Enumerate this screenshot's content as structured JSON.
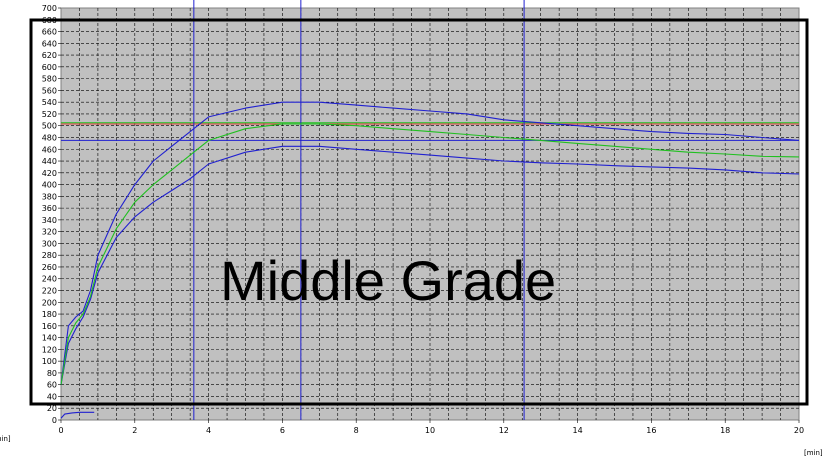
{
  "chart_data": {
    "type": "line",
    "xlabel_unit": "[min]",
    "ylabel_unit": "[min]",
    "xlim": [
      0,
      20
    ],
    "ylim": [
      0,
      700
    ],
    "x_ticks": [
      "0",
      "2",
      "4",
      "6",
      "8",
      "10",
      "12",
      "14",
      "16",
      "18",
      "20"
    ],
    "y_ticks": [
      "0",
      "20",
      "40",
      "60",
      "80",
      "100",
      "120",
      "140",
      "160",
      "180",
      "200",
      "220",
      "240",
      "260",
      "280",
      "300",
      "320",
      "340",
      "360",
      "380",
      "400",
      "420",
      "440",
      "460",
      "480",
      "500",
      "520",
      "540",
      "560",
      "580",
      "600",
      "620",
      "640",
      "660",
      "680",
      "700"
    ],
    "grid": true,
    "plot_background": "#c0c0c0",
    "overlay_text": "Middle Grade",
    "series": [
      {
        "color": "#2020d0",
        "x": [
          0,
          0.2,
          0.4,
          0.6,
          0.8,
          1,
          1.5,
          2,
          2.5,
          3,
          3.5,
          4,
          5,
          6,
          7,
          8,
          9,
          10,
          11,
          12,
          13,
          14,
          15,
          16,
          17,
          18,
          19,
          20
        ],
        "y": [
          60,
          160,
          175,
          185,
          220,
          280,
          350,
          400,
          440,
          465,
          490,
          515,
          530,
          540,
          540,
          535,
          530,
          525,
          520,
          510,
          505,
          500,
          495,
          490,
          487,
          485,
          480,
          475
        ]
      },
      {
        "color": "#2020d0",
        "x": [
          0,
          0.2,
          0.4,
          0.6,
          0.8,
          1,
          1.5,
          2,
          2.5,
          3,
          3.5,
          4,
          5,
          6,
          7,
          8,
          9,
          10,
          11,
          12,
          13,
          14,
          15,
          16,
          17,
          18,
          19,
          20
        ],
        "y": [
          60,
          130,
          155,
          175,
          205,
          250,
          310,
          345,
          370,
          390,
          410,
          435,
          455,
          465,
          465,
          460,
          455,
          450,
          445,
          440,
          437,
          435,
          432,
          430,
          428,
          425,
          420,
          418
        ]
      },
      {
        "color": "#20c020",
        "x": [
          0,
          0.2,
          0.4,
          0.6,
          0.8,
          1,
          1.5,
          2,
          2.5,
          3,
          3.5,
          4,
          5,
          6,
          7,
          8,
          9,
          10,
          11,
          12,
          13,
          14,
          15,
          16,
          17,
          18,
          19,
          20
        ],
        "y": [
          60,
          140,
          165,
          180,
          210,
          260,
          325,
          370,
          400,
          425,
          450,
          475,
          495,
          503,
          503,
          500,
          495,
          490,
          485,
          480,
          475,
          470,
          465,
          460,
          455,
          452,
          448,
          447
        ]
      },
      {
        "color": "#2020d0",
        "x": [
          0,
          0.1,
          0.3,
          0.5,
          0.7,
          0.9
        ],
        "y": [
          3,
          10,
          12,
          13,
          13,
          13
        ]
      }
    ],
    "horizontal_lines": [
      {
        "y": 505,
        "color": "#20c020"
      },
      {
        "y": 503,
        "color": "#e04040"
      },
      {
        "y": 475,
        "color": "#2020d0"
      }
    ],
    "vertical_lines": [
      {
        "x": 3.6,
        "color": "#2020d0"
      },
      {
        "x": 6.5,
        "color": "#2020d0"
      },
      {
        "x": 12.55,
        "color": "#2020d0"
      }
    ]
  }
}
